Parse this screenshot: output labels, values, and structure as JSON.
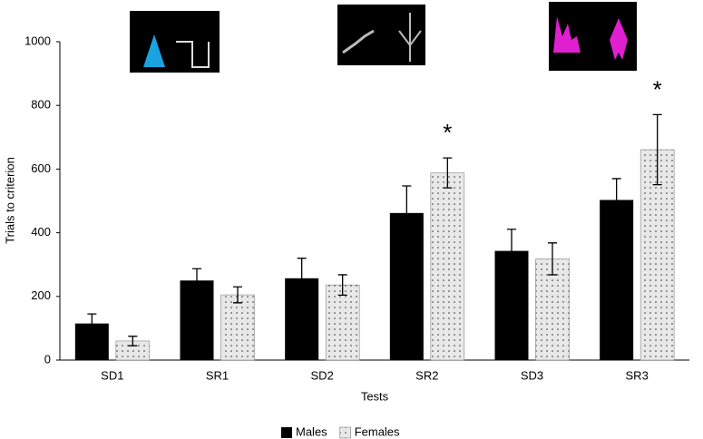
{
  "chart_data": {
    "type": "bar",
    "x_label": "Tests",
    "y_label": "Trials to criterion",
    "categories": [
      "SD1",
      "SR1",
      "SD2",
      "SR2",
      "SD3",
      "SR3"
    ],
    "series": [
      {
        "name": "Males",
        "color": "#000000",
        "values": [
          115,
          250,
          257,
          462,
          343,
          503
        ],
        "errors": [
          30,
          37,
          63,
          85,
          68,
          67
        ]
      },
      {
        "name": "Females",
        "color": "#e8e8e8",
        "pattern": "dots",
        "values": [
          60,
          205,
          236,
          588,
          318,
          661
        ],
        "errors": [
          15,
          25,
          32,
          47,
          50,
          110
        ]
      }
    ],
    "significance": [
      null,
      null,
      null,
      "*",
      null,
      "*"
    ],
    "ylim": [
      0,
      1000
    ],
    "yticks": [
      0,
      200,
      400,
      600,
      800,
      1000
    ],
    "grid": false,
    "legend": "bottom"
  }
}
